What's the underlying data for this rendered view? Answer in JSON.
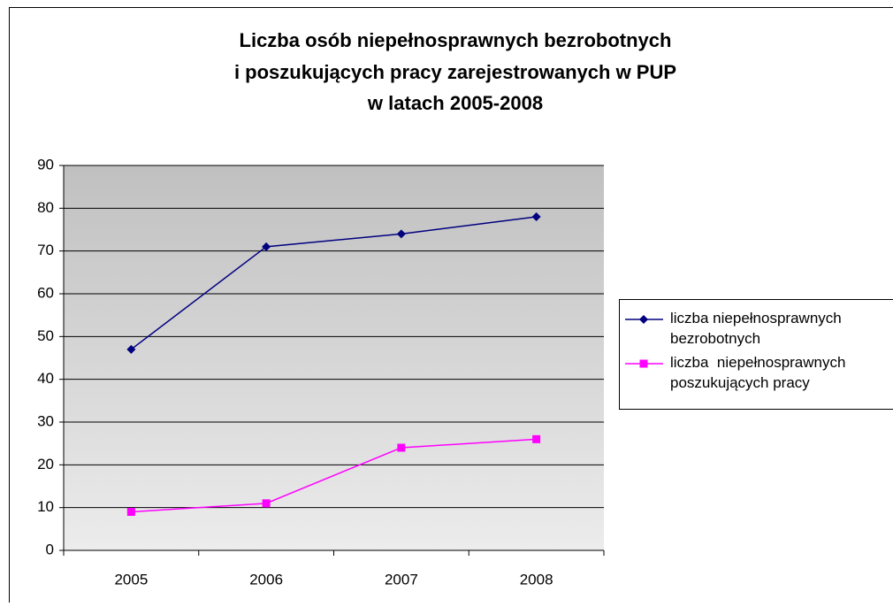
{
  "chart_data": {
    "type": "line",
    "title": [
      "Liczba osób niepełnosprawnych bezrobotnych",
      "i poszukujących pracy zarejestrowanych w PUP",
      "w latach 2005-2008"
    ],
    "categories": [
      "2005",
      "2006",
      "2007",
      "2008"
    ],
    "series": [
      {
        "name": "liczba niepełnosprawnych bezrobotnych",
        "color": "#000080",
        "marker": "diamond",
        "values": [
          47,
          71,
          74,
          78
        ]
      },
      {
        "name": "liczba  niepełnosprawnych poszukujących pracy",
        "color": "#ff00ff",
        "marker": "square",
        "values": [
          9,
          11,
          24,
          26
        ]
      }
    ],
    "ylim": [
      0,
      90
    ],
    "yticks": [
      0,
      10,
      20,
      30,
      40,
      50,
      60,
      70,
      80,
      90
    ],
    "grid": true,
    "legend": "right"
  }
}
